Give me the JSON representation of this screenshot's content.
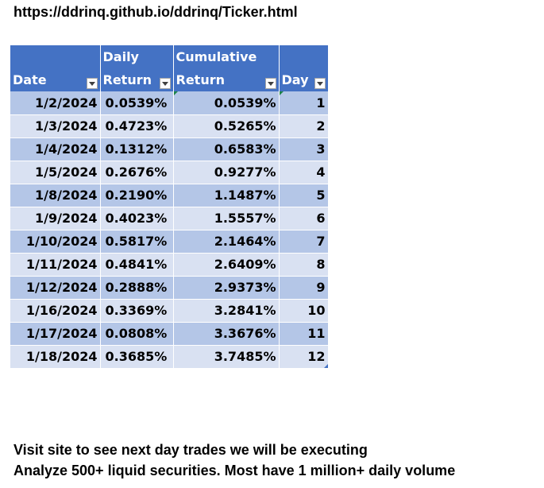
{
  "url": "https://ddrinq.github.io/ddrinq/Ticker.html",
  "table": {
    "headers": [
      {
        "line1": "",
        "line2": "Date"
      },
      {
        "line1": "Daily",
        "line2": "Return"
      },
      {
        "line1": "Cumulative",
        "line2": "Return"
      },
      {
        "line1": "",
        "line2": "Day"
      }
    ],
    "rows": [
      {
        "date": "1/2/2024",
        "daily": "0.0539%",
        "cumulative": "0.0539%",
        "day": "1"
      },
      {
        "date": "1/3/2024",
        "daily": "0.4723%",
        "cumulative": "0.5265%",
        "day": "2"
      },
      {
        "date": "1/4/2024",
        "daily": "0.1312%",
        "cumulative": "0.6583%",
        "day": "3"
      },
      {
        "date": "1/5/2024",
        "daily": "0.2676%",
        "cumulative": "0.9277%",
        "day": "4"
      },
      {
        "date": "1/8/2024",
        "daily": "0.2190%",
        "cumulative": "1.1487%",
        "day": "5"
      },
      {
        "date": "1/9/2024",
        "daily": "0.4023%",
        "cumulative": "1.5557%",
        "day": "6"
      },
      {
        "date": "1/10/2024",
        "daily": "0.5817%",
        "cumulative": "2.1464%",
        "day": "7"
      },
      {
        "date": "1/11/2024",
        "daily": "0.4841%",
        "cumulative": "2.6409%",
        "day": "8"
      },
      {
        "date": "1/12/2024",
        "daily": "0.2888%",
        "cumulative": "2.9373%",
        "day": "9"
      },
      {
        "date": "1/16/2024",
        "daily": "0.3369%",
        "cumulative": "3.2841%",
        "day": "10"
      },
      {
        "date": "1/17/2024",
        "daily": "0.0808%",
        "cumulative": "3.3676%",
        "day": "11"
      },
      {
        "date": "1/18/2024",
        "daily": "0.3685%",
        "cumulative": "3.7485%",
        "day": "12"
      }
    ]
  },
  "footer": {
    "line1": "Visit site to see next day trades we will be executing",
    "line2": "Analyze 500+ liquid securities.  Most have 1 million+ daily volume"
  },
  "colors": {
    "header_bg": "#4472c4",
    "band_dark": "#b4c6e7",
    "band_light": "#d9e1f2"
  }
}
